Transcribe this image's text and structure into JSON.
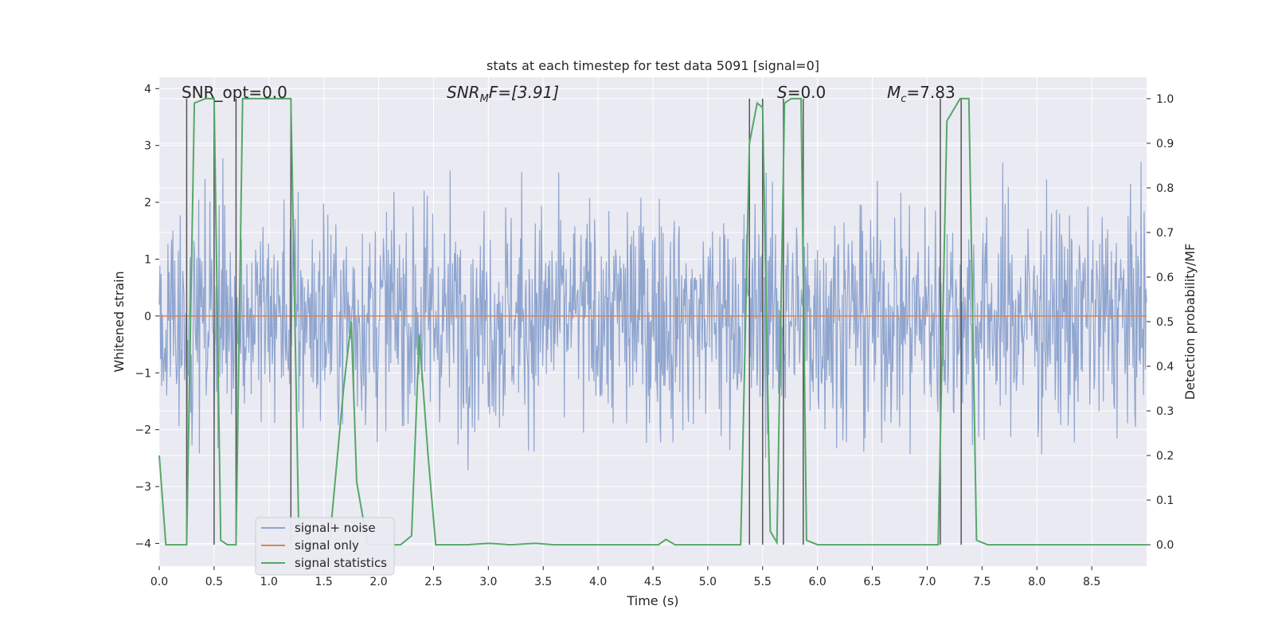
{
  "chart_data": {
    "type": "line",
    "title": "stats at each timestep for test data 5091 [signal=0]",
    "xlabel": "Time (s)",
    "ylabel": "Whitened strain",
    "ylabel_right": "Detection probability/MF",
    "xlim": [
      0.0,
      9.0
    ],
    "ylim": [
      -4.4,
      4.2
    ],
    "ylim_right": [
      -0.048,
      1.048
    ],
    "x_ticks": [
      "0.0",
      "0.5",
      "1.0",
      "1.5",
      "2.0",
      "2.5",
      "3.0",
      "3.5",
      "4.0",
      "4.5",
      "5.0",
      "5.5",
      "6.0",
      "6.5",
      "7.0",
      "7.5",
      "8.0",
      "8.5"
    ],
    "y_ticks": [
      "4",
      "3",
      "2",
      "1",
      "0",
      "−1",
      "−2",
      "−3",
      "−4"
    ],
    "y_ticks_right": [
      "1.0",
      "0.9",
      "0.8",
      "0.7",
      "0.6",
      "0.5",
      "0.4",
      "0.3",
      "0.2",
      "0.1",
      "0.0"
    ],
    "grid": true,
    "annotations": {
      "snr_opt": "SNR_opt=0.0",
      "snr_mf_base": "SNR",
      "snr_mf_sub": "M",
      "snr_mf_rest": "F=[3.91]",
      "s_label": "S",
      "s_value": "=0.0",
      "mc_base": "M",
      "mc_sub": "c",
      "mc_value": "=7.83"
    },
    "legend": {
      "placement": "lower-left",
      "entries": [
        "signal+ noise",
        "signal only",
        "signal statistics"
      ]
    },
    "colors": {
      "noise": "#8fa5cf",
      "signal": "#dd8452",
      "stats": "#55a868",
      "vlines": "#555555",
      "background": "#eaeaf2",
      "grid": "#ffffff"
    },
    "series": [
      {
        "name": "signal statistics",
        "axis": "right",
        "x": [
          0.0,
          0.06,
          0.12,
          0.25,
          0.32,
          0.42,
          0.5,
          0.56,
          0.62,
          0.7,
          0.76,
          0.85,
          1.0,
          1.1,
          1.2,
          1.27,
          1.4,
          1.55,
          1.68,
          1.75,
          1.8,
          1.9,
          2.0,
          2.1,
          2.2,
          2.3,
          2.37,
          2.45,
          2.52,
          2.6,
          2.8,
          3.0,
          3.2,
          3.43,
          3.6,
          4.0,
          4.4,
          4.55,
          4.62,
          4.7,
          4.9,
          5.0,
          5.3,
          5.38,
          5.45,
          5.5,
          5.57,
          5.63,
          5.7,
          5.76,
          5.85,
          5.9,
          6.0,
          6.5,
          7.0,
          7.1,
          7.18,
          7.3,
          7.38,
          7.45,
          7.55,
          8.0,
          8.5,
          9.0
        ],
        "y": [
          0.2,
          0.0,
          0.0,
          0.0,
          0.99,
          1.0,
          1.0,
          0.01,
          0.0,
          0.0,
          1.0,
          1.0,
          1.0,
          1.0,
          1.0,
          0.05,
          0.0,
          0.0,
          0.35,
          0.5,
          0.14,
          0.0,
          0.0,
          0.0,
          0.0,
          0.02,
          0.47,
          0.2,
          0.0,
          0.0,
          0.0,
          0.003,
          0.0,
          0.003,
          0.0,
          0.0,
          0.0,
          0.0,
          0.012,
          0.0,
          0.0,
          0.0,
          0.0,
          0.9,
          0.99,
          0.98,
          0.03,
          0.005,
          0.99,
          1.0,
          1.0,
          0.01,
          0.0,
          0.0,
          0.0,
          0.0,
          0.95,
          1.0,
          1.0,
          0.01,
          0.0,
          0.0,
          0.0,
          0.0
        ]
      },
      {
        "name": "signal only",
        "axis": "left",
        "x": [
          0.0,
          9.0
        ],
        "y": [
          0.0,
          0.0
        ]
      },
      {
        "name": "signal+ noise",
        "axis": "left",
        "description_type": "whitened noise, roughly gaussian",
        "x_range": [
          0.0,
          9.0
        ],
        "std": 1.0,
        "y_range": [
          -3.6,
          3.7
        ]
      }
    ],
    "vertical_lines_x": [
      0.25,
      0.5,
      0.7,
      1.2,
      5.38,
      5.5,
      5.69,
      5.87,
      7.12,
      7.31
    ]
  }
}
